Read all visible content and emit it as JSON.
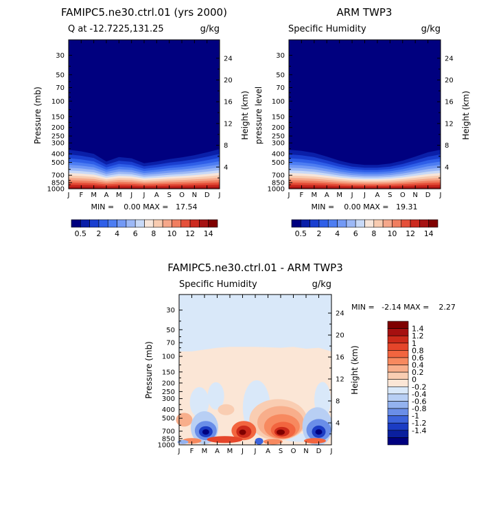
{
  "chart_data": [
    {
      "type": "heatmap",
      "id": "model",
      "title": "FAMIPC5.ne30.ctrl.01 (yrs 2000)",
      "left_label": "Q at -12.7225,131.25",
      "right_label": "g/kg",
      "xlabel": "",
      "ylabel": "Pressure (mb)",
      "ylabel_right": "Height (km)",
      "months": [
        "J",
        "F",
        "M",
        "A",
        "M",
        "J",
        "J",
        "A",
        "S",
        "O",
        "N",
        "D",
        "J"
      ],
      "pressure_ticks": [
        "30",
        "50",
        "70",
        "100",
        "150",
        "200",
        "250",
        "300",
        "400",
        "500",
        "700",
        "850",
        "1000"
      ],
      "pressure_values": [
        30,
        50,
        70,
        100,
        150,
        200,
        250,
        300,
        400,
        500,
        700,
        850,
        1000
      ],
      "height_ticks": [
        "4",
        "8",
        "12",
        "16",
        "20",
        "24"
      ],
      "height_values": [
        4,
        8,
        12,
        16,
        20,
        24
      ],
      "ylim": [
        1000,
        20
      ],
      "stats_text": "MIN =    0.00 MAX =   17.54",
      "min": 0.0,
      "max": 17.54,
      "boundary_profile": [
        290,
        305,
        330,
        420,
        365,
        380,
        445,
        420,
        390,
        370,
        345,
        315,
        285
      ],
      "colorbar": {
        "labels": [
          "0.5",
          "2",
          "4",
          "6",
          "8",
          "10",
          "12",
          "14"
        ],
        "colors": [
          "#00007f",
          "#0a1fa8",
          "#1a3fd0",
          "#2f5fe8",
          "#4d7df2",
          "#7299f5",
          "#9cb8f6",
          "#c8d9f7",
          "#f7e5d9",
          "#f8cbb0",
          "#f5a78a",
          "#f07e60",
          "#e5503a",
          "#cc2a1f",
          "#a71313",
          "#7f0000"
        ]
      }
    },
    {
      "type": "heatmap",
      "id": "obs",
      "title": "ARM TWP3",
      "left_label": "Specific Humidity",
      "right_label": "g/kg",
      "xlabel": "",
      "ylabel": "pressure level",
      "ylabel_right": "Height (km)",
      "months": [
        "J",
        "F",
        "M",
        "A",
        "M",
        "J",
        "J",
        "A",
        "S",
        "O",
        "N",
        "D",
        "J"
      ],
      "pressure_ticks": [
        "30",
        "50",
        "70",
        "100",
        "150",
        "200",
        "250",
        "300",
        "400",
        "500",
        "700",
        "850",
        "1000"
      ],
      "pressure_values": [
        30,
        50,
        70,
        100,
        150,
        200,
        250,
        300,
        400,
        500,
        700,
        850,
        1000
      ],
      "height_ticks": [
        "4",
        "8",
        "12",
        "16",
        "20",
        "24"
      ],
      "height_values": [
        4,
        8,
        12,
        16,
        20,
        24
      ],
      "ylim": [
        1000,
        20
      ],
      "stats_text": "MIN =    0.00 MAX =   19.31",
      "min": 0.0,
      "max": 19.31,
      "boundary_profile": [
        290,
        300,
        320,
        360,
        410,
        450,
        470,
        470,
        450,
        410,
        360,
        315,
        290
      ],
      "colorbar": {
        "labels": [
          "0.5",
          "2",
          "4",
          "6",
          "8",
          "10",
          "12",
          "14"
        ],
        "colors": [
          "#00007f",
          "#0a1fa8",
          "#1a3fd0",
          "#2f5fe8",
          "#4d7df2",
          "#7299f5",
          "#9cb8f6",
          "#c8d9f7",
          "#f7e5d9",
          "#f8cbb0",
          "#f5a78a",
          "#f07e60",
          "#e5503a",
          "#cc2a1f",
          "#a71313",
          "#7f0000"
        ]
      }
    },
    {
      "type": "heatmap",
      "id": "diff",
      "title": "FAMIPC5.ne30.ctrl.01 - ARM TWP3",
      "left_label": "Specific Humidity",
      "right_label": "g/kg",
      "xlabel": "",
      "ylabel": "Pressure (mb)",
      "ylabel_right": "Height (km)",
      "months": [
        "J",
        "F",
        "M",
        "A",
        "M",
        "J",
        "J",
        "A",
        "S",
        "O",
        "N",
        "D",
        "J"
      ],
      "pressure_ticks": [
        "30",
        "50",
        "70",
        "100",
        "150",
        "200",
        "250",
        "300",
        "400",
        "500",
        "700",
        "850",
        "1000"
      ],
      "pressure_values": [
        30,
        50,
        70,
        100,
        150,
        200,
        250,
        300,
        400,
        500,
        700,
        850,
        1000
      ],
      "height_ticks": [
        "4",
        "8",
        "12",
        "16",
        "20",
        "24"
      ],
      "height_values": [
        4,
        8,
        12,
        16,
        20,
        24
      ],
      "ylim": [
        1000,
        20
      ],
      "stats_text": "MIN =   -2.14 MAX =    2.27",
      "min": -2.14,
      "max": 2.27,
      "colorbar": {
        "labels": [
          "1.4",
          "1.2",
          "1",
          "0.8",
          "0.6",
          "0.4",
          "0.2",
          "0",
          "-0.2",
          "-0.4",
          "-0.6",
          "-0.8",
          "-1",
          "-1.2",
          "-1.4"
        ],
        "colors": [
          "#7f0000",
          "#a61010",
          "#cc2a1a",
          "#e5452a",
          "#f2653f",
          "#f7895f",
          "#f8ae8b",
          "#f9cdb2",
          "#fbe6d6",
          "#d9e8f9",
          "#b8cff4",
          "#93b2ef",
          "#6a8ee8",
          "#3c63dc",
          "#1b3cc4",
          "#0a1f9e",
          "#00007f"
        ]
      }
    }
  ]
}
